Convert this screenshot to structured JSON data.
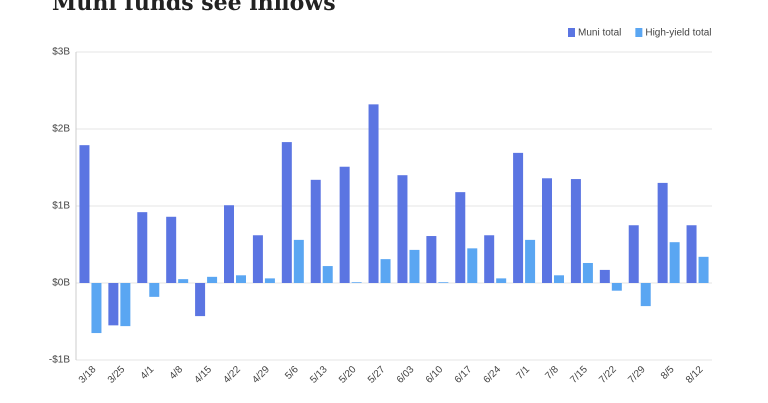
{
  "chart_data": {
    "type": "bar",
    "title": "Muni funds see inflows",
    "categories": [
      "3/18",
      "3/25",
      "4/1",
      "4/8",
      "4/15",
      "4/22",
      "4/29",
      "5/6",
      "5/13",
      "5/20",
      "5/27",
      "6/03",
      "6/10",
      "6/17",
      "6/24",
      "7/1",
      "7/8",
      "7/15",
      "7/22",
      "7/29",
      "8/5",
      "8/12"
    ],
    "series": [
      {
        "name": "Muni total",
        "color": "#5b75e2",
        "values": [
          1.79,
          -0.55,
          0.92,
          0.86,
          -0.43,
          1.01,
          0.62,
          1.83,
          1.34,
          1.51,
          2.32,
          1.4,
          0.61,
          1.18,
          0.62,
          1.69,
          1.36,
          1.35,
          0.17,
          0.75,
          1.3,
          0.75
        ]
      },
      {
        "name": "High-yield total",
        "color": "#5aa6f2",
        "values": [
          -0.65,
          -0.56,
          -0.18,
          0.05,
          0.08,
          0.1,
          0.06,
          0.56,
          0.22,
          0.01,
          0.31,
          0.43,
          0.01,
          0.45,
          0.06,
          0.56,
          0.1,
          0.26,
          -0.1,
          -0.3,
          0.53,
          0.34
        ]
      }
    ],
    "ylim": [
      -1,
      3
    ],
    "yticks": [
      {
        "value": -1,
        "label": "-$1B"
      },
      {
        "value": 0,
        "label": "$0B"
      },
      {
        "value": 1,
        "label": "$1B"
      },
      {
        "value": 2,
        "label": "$2B"
      },
      {
        "value": 3,
        "label": "$3B"
      }
    ],
    "grid": true
  }
}
